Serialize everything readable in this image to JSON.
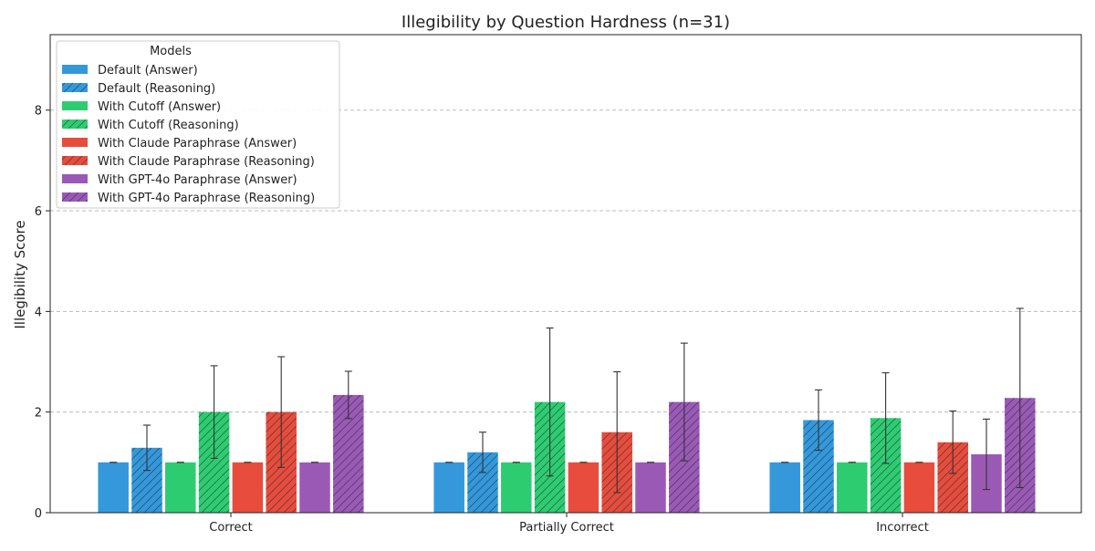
{
  "chart_data": {
    "type": "bar",
    "title": "Illegibility by Question Hardness (n=31)",
    "xlabel": "",
    "ylabel": "Illegibility Score",
    "categories": [
      "Correct",
      "Partially Correct",
      "Incorrect"
    ],
    "ylim": [
      0,
      9.5
    ],
    "yticks": [
      0,
      2,
      4,
      6,
      8
    ],
    "grid": "y-dashed",
    "legend": {
      "title": "Models",
      "position": "top-left"
    },
    "series": [
      {
        "name": "Default (Answer)",
        "color": "#3498db",
        "hatch": false,
        "values": [
          1.0,
          1.0,
          1.0
        ],
        "err": [
          0,
          0,
          0
        ]
      },
      {
        "name": "Default (Reasoning)",
        "color": "#3498db",
        "hatch": true,
        "values": [
          1.29,
          1.2,
          1.84
        ],
        "err": [
          0.45,
          0.4,
          0.6
        ]
      },
      {
        "name": "With Cutoff (Answer)",
        "color": "#2ecc71",
        "hatch": false,
        "values": [
          1.0,
          1.0,
          1.0
        ],
        "err": [
          0,
          0,
          0
        ]
      },
      {
        "name": "With Cutoff (Reasoning)",
        "color": "#2ecc71",
        "hatch": true,
        "values": [
          2.0,
          2.2,
          1.88
        ],
        "err": [
          0.92,
          1.47,
          0.9
        ]
      },
      {
        "name": "With Claude Paraphrase (Answer)",
        "color": "#e74c3c",
        "hatch": false,
        "values": [
          1.0,
          1.0,
          1.0
        ],
        "err": [
          0,
          0,
          0
        ]
      },
      {
        "name": "With Claude Paraphrase (Reasoning)",
        "color": "#e74c3c",
        "hatch": true,
        "values": [
          2.0,
          1.6,
          1.4
        ],
        "err": [
          1.1,
          1.2,
          0.62
        ]
      },
      {
        "name": "With GPT-4o Paraphrase (Answer)",
        "color": "#9b59b6",
        "hatch": false,
        "values": [
          1.0,
          1.0,
          1.16
        ],
        "err": [
          0,
          0,
          0.7
        ]
      },
      {
        "name": "With GPT-4o Paraphrase (Reasoning)",
        "color": "#9b59b6",
        "hatch": true,
        "values": [
          2.34,
          2.2,
          2.28
        ],
        "err": [
          0.47,
          1.17,
          1.78
        ]
      }
    ]
  }
}
